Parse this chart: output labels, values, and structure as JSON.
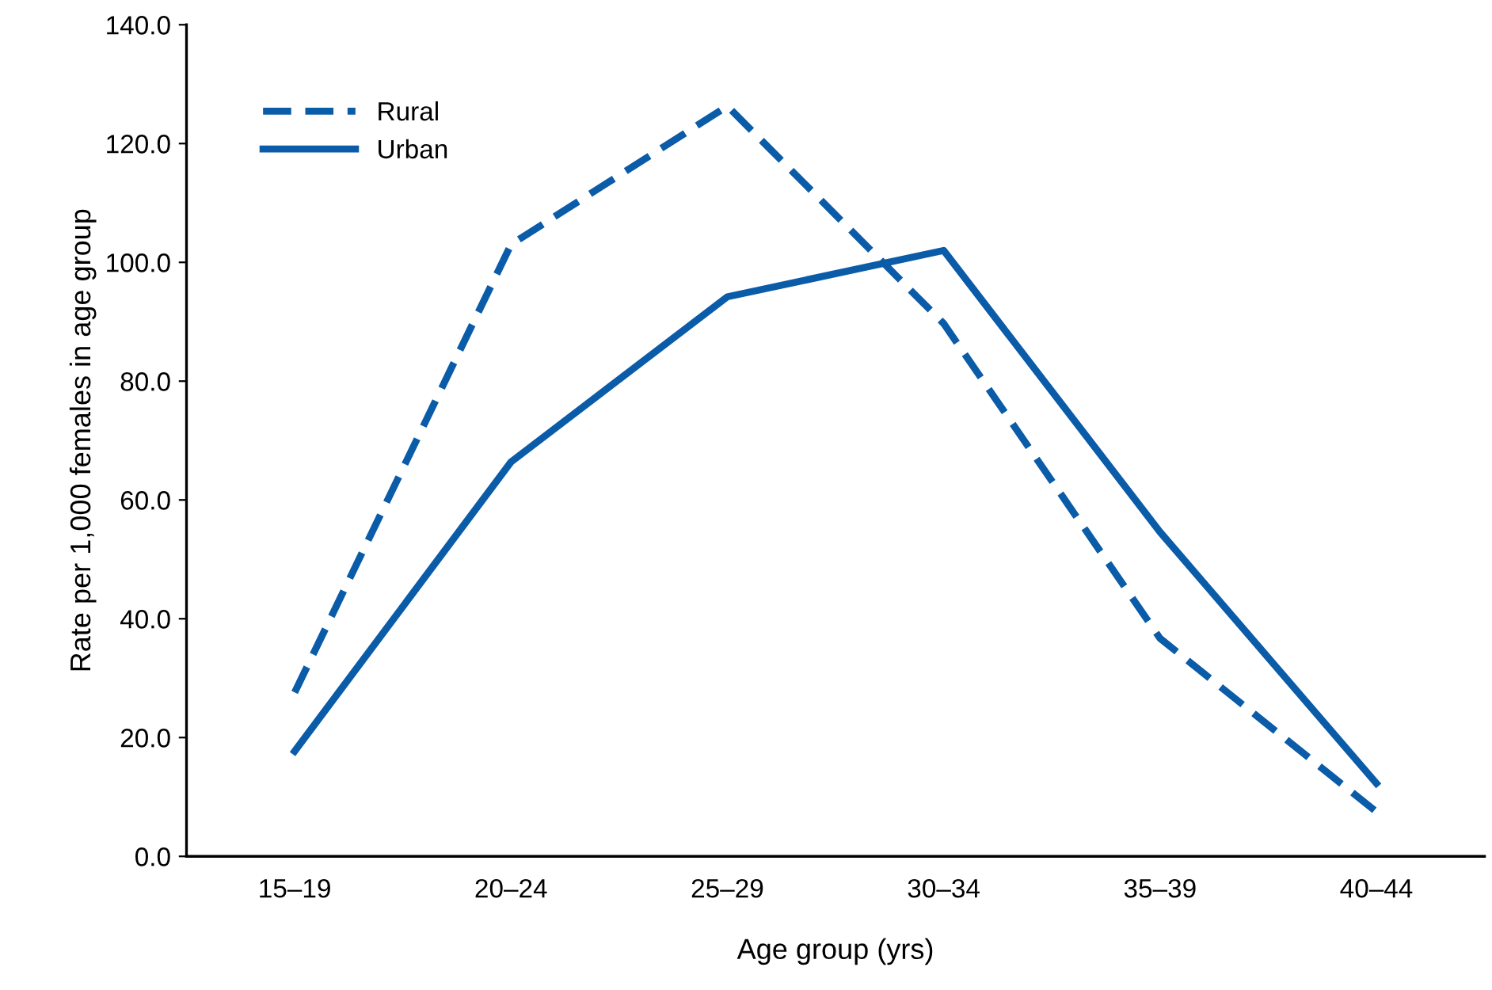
{
  "chart_data": {
    "type": "line",
    "xlabel": "Age group (yrs)",
    "ylabel": "Rate per 1,000 females in age group",
    "categories": [
      "15–19",
      "20–24",
      "25–29",
      "30–34",
      "35–39",
      "40–44"
    ],
    "series": [
      {
        "name": "Rural",
        "color": "#0b5ca8",
        "line_style": "dashed",
        "values": [
          27.6,
          103.0,
          126.3,
          89.7,
          36.7,
          7.5
        ]
      },
      {
        "name": "Urban",
        "color": "#0b5ca8",
        "line_style": "solid",
        "values": [
          17.7,
          66.4,
          94.2,
          102.0,
          54.6,
          12.3
        ]
      }
    ],
    "ylim": [
      0,
      140
    ],
    "yticks": [
      {
        "value": 0,
        "label": "0.0"
      },
      {
        "value": 20,
        "label": "20.0"
      },
      {
        "value": 40,
        "label": "40.0"
      },
      {
        "value": 60,
        "label": "60.0"
      },
      {
        "value": 80,
        "label": "80.0"
      },
      {
        "value": 100,
        "label": "100.0"
      },
      {
        "value": 120,
        "label": "120.0"
      },
      {
        "value": 140,
        "label": "140.0"
      }
    ],
    "grid": false,
    "legend": "top left",
    "marker": "none"
  }
}
